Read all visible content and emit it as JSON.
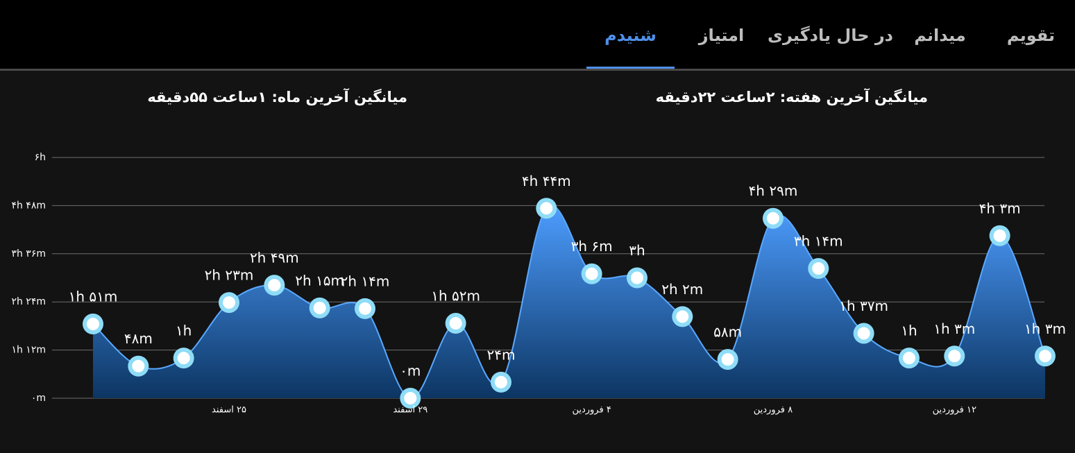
{
  "tabs": [
    "تقویم",
    "میدانم",
    "در حال یادگیری",
    "امتیاز",
    "شنیدم"
  ],
  "active_tab": 4,
  "stats": [
    "میانگین آخرین هفته: ۲ساعت ۲۲دقیقه",
    "میانگین آخرین ماه: ۱ساعت ۵۵دقیقه"
  ],
  "chart_data": {
    "type": "area",
    "categories": [
      null,
      null,
      null,
      "۲۵ اسفند",
      null,
      null,
      null,
      "۲۹ اسفند",
      null,
      null,
      null,
      "۴ فروردین",
      null,
      null,
      null,
      "۸ فروردین",
      null,
      null,
      null,
      "۱۲ فروردین",
      null,
      null
    ],
    "values": [
      111,
      48,
      60,
      143,
      169,
      135,
      134,
      0,
      112,
      24,
      284,
      186,
      180,
      122,
      58,
      269,
      194,
      97,
      60,
      63,
      243,
      63
    ],
    "value_labels": [
      "۱h ۵۱m",
      "۴۸m",
      "۱h",
      "۲h ۲۳m",
      "۲h ۴۹m",
      "۲h ۱۵m",
      "۲h ۱۴m",
      "۰m",
      "۱h ۵۲m",
      "۲۴m",
      "۴h ۴۴m",
      "۳h ۶m",
      "۳h",
      "۲h ۲m",
      "۵۸m",
      "۴h ۲۹m",
      "۳h ۱۴m",
      "۱h ۳۷m",
      "۱h",
      "۱h ۳m",
      "۴h ۳m",
      "۱h ۳m"
    ],
    "ylim": [
      0,
      360
    ],
    "yticks": [
      {
        "value": 0,
        "label": "۰m"
      },
      {
        "value": 72,
        "label": "۱h ۱۲m"
      },
      {
        "value": 144,
        "label": "۲h ۲۴m"
      },
      {
        "value": 216,
        "label": "۳h ۳۶m"
      },
      {
        "value": 288,
        "label": "۴h ۴۸m"
      },
      {
        "value": 360,
        "label": "۶h"
      }
    ],
    "grid": true,
    "color": "#5aa8ff"
  }
}
